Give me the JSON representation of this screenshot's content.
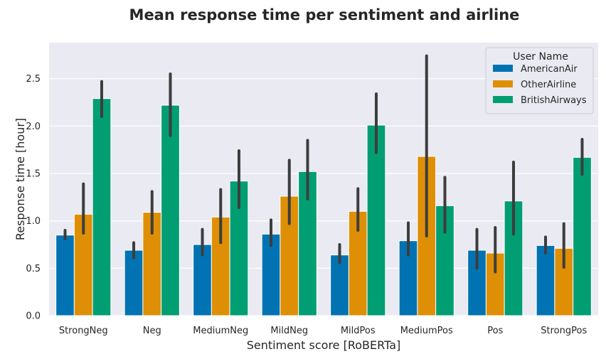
{
  "chart_data": {
    "type": "bar",
    "title": "Mean response time per sentiment and airline",
    "xlabel": "Sentiment score [RoBERTa]",
    "ylabel": "Response time [hour]",
    "ylim": [
      0,
      2.88
    ],
    "yticks": [
      0.0,
      0.5,
      1.0,
      1.5,
      2.0,
      2.5
    ],
    "ytick_labels": [
      "0.0",
      "0.5",
      "1.0",
      "1.5",
      "2.0",
      "2.5"
    ],
    "grid": true,
    "categories": [
      "StrongNeg",
      "Neg",
      "MediumNeg",
      "MildNeg",
      "MildPos",
      "MediumPos",
      "Pos",
      "StrongPos"
    ],
    "legend": {
      "title": "User Name",
      "placement": "top-right"
    },
    "series": [
      {
        "name": "AmericanAir",
        "color": "#0173b2",
        "values": [
          0.85,
          0.69,
          0.75,
          0.86,
          0.64,
          0.79,
          0.69,
          0.74
        ],
        "err_low": [
          0.81,
          0.61,
          0.64,
          0.74,
          0.56,
          0.64,
          0.5,
          0.66
        ],
        "err_high": [
          0.9,
          0.77,
          0.91,
          1.01,
          0.75,
          0.98,
          0.91,
          0.83
        ]
      },
      {
        "name": "OtherAirline",
        "color": "#de8f05",
        "values": [
          1.07,
          1.09,
          1.04,
          1.26,
          1.1,
          1.68,
          0.66,
          0.71
        ],
        "err_low": [
          0.87,
          0.87,
          0.77,
          0.97,
          0.9,
          0.84,
          0.46,
          0.51
        ],
        "err_high": [
          1.39,
          1.31,
          1.33,
          1.64,
          1.34,
          2.74,
          0.93,
          0.97
        ]
      },
      {
        "name": "BritishAirways",
        "color": "#029e73",
        "values": [
          2.29,
          2.22,
          1.42,
          1.52,
          2.01,
          1.16,
          1.21,
          1.67
        ],
        "err_low": [
          2.1,
          1.9,
          1.14,
          1.23,
          1.72,
          0.88,
          0.86,
          1.49
        ],
        "err_high": [
          2.47,
          2.55,
          1.74,
          1.85,
          2.34,
          1.46,
          1.62,
          1.86
        ]
      }
    ]
  }
}
